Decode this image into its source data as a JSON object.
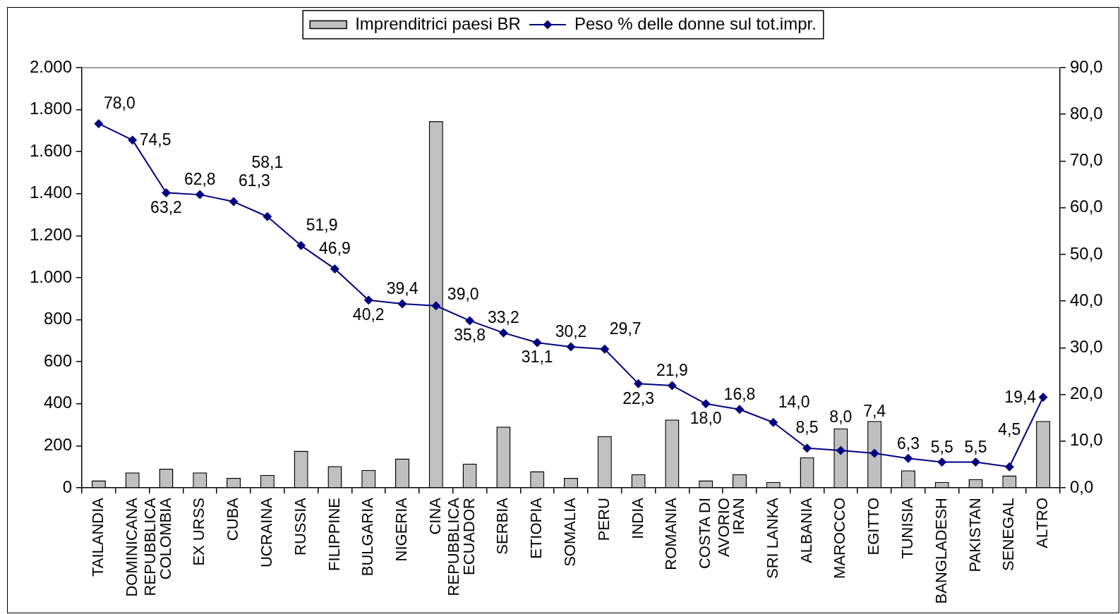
{
  "chart_data": {
    "type": "bar",
    "categories": [
      "TAILANDIA",
      "DOMINICANA REPUBBLICA",
      "COLOMBIA",
      "EX URSS",
      "CUBA",
      "UCRAINA",
      "RUSSIA",
      "FILIPPINE",
      "BULGARIA",
      "NIGERIA",
      "CINA REPUBBLICA",
      "ECUADOR",
      "SERBIA",
      "ETIOPIA",
      "SOMALIA",
      "PERU",
      "INDIA",
      "ROMANIA",
      "COSTA DI AVORIO",
      "IRAN",
      "SRI LANKA",
      "ALBANIA",
      "MAROCCO",
      "EGITTO",
      "TUNISIA",
      "BANGLADESH",
      "PAKISTAN",
      "SENEGAL",
      "ALTRO"
    ],
    "series": [
      {
        "name": "Imprenditrici paesi BR",
        "color": "#c0c0c0",
        "values": [
          35,
          73,
          91,
          73,
          47,
          61,
          176,
          103,
          85,
          139,
          1745,
          115,
          291,
          79,
          47,
          246,
          65,
          325,
          35,
          65,
          28,
          145,
          283,
          318,
          83,
          28,
          41,
          59,
          318
        ]
      },
      {
        "name": "Peso % delle donne sul tot.impr.",
        "type": "line",
        "axis": "y2",
        "color": "#000080",
        "values": [
          78.0,
          74.5,
          63.2,
          62.8,
          61.3,
          58.1,
          51.9,
          46.9,
          40.2,
          39.4,
          39.0,
          35.8,
          33.2,
          31.1,
          30.2,
          29.7,
          22.3,
          21.9,
          18.0,
          16.8,
          14.0,
          8.5,
          8.0,
          7.4,
          6.3,
          5.5,
          5.5,
          4.5,
          19.4
        ],
        "value_labels": [
          "78,0",
          "74,5",
          "63,2",
          "62,8",
          "61,3",
          "58,1",
          "51,9",
          "46,9",
          "40,2",
          "39,4",
          "39,0",
          "35,8",
          "33,2",
          "31,1",
          "30,2",
          "29,7",
          "22,3",
          "21,9",
          "18,0",
          "16,8",
          "14,0",
          "8,5",
          "8,0",
          "7,4",
          "6,3",
          "5,5",
          "5,5",
          "4,5",
          "19,4"
        ]
      }
    ],
    "ylim": [
      0,
      2000
    ],
    "yticks": [
      0,
      200,
      400,
      600,
      800,
      {
        "value": 1000,
        "label": "1.000"
      },
      {
        "value": 1200,
        "label": "1.200"
      },
      {
        "value": 1400,
        "label": "1.400"
      },
      {
        "value": 1600,
        "label": "1.600"
      },
      {
        "value": 1800,
        "label": "1.800"
      },
      {
        "value": 2000,
        "label": "2.000"
      }
    ],
    "y2lim": [
      0,
      90
    ],
    "y2ticks": [
      {
        "value": 0,
        "label": "0,0"
      },
      {
        "value": 10,
        "label": "10,0"
      },
      {
        "value": 20,
        "label": "20,0"
      },
      {
        "value": 30,
        "label": "30,0"
      },
      {
        "value": 40,
        "label": "40,0"
      },
      {
        "value": 50,
        "label": "50,0"
      },
      {
        "value": 60,
        "label": "60,0"
      },
      {
        "value": 70,
        "label": "70,0"
      },
      {
        "value": 80,
        "label": "80,0"
      },
      {
        "value": 90,
        "label": "90,0"
      }
    ],
    "legend": "top",
    "marker": "diamond"
  }
}
